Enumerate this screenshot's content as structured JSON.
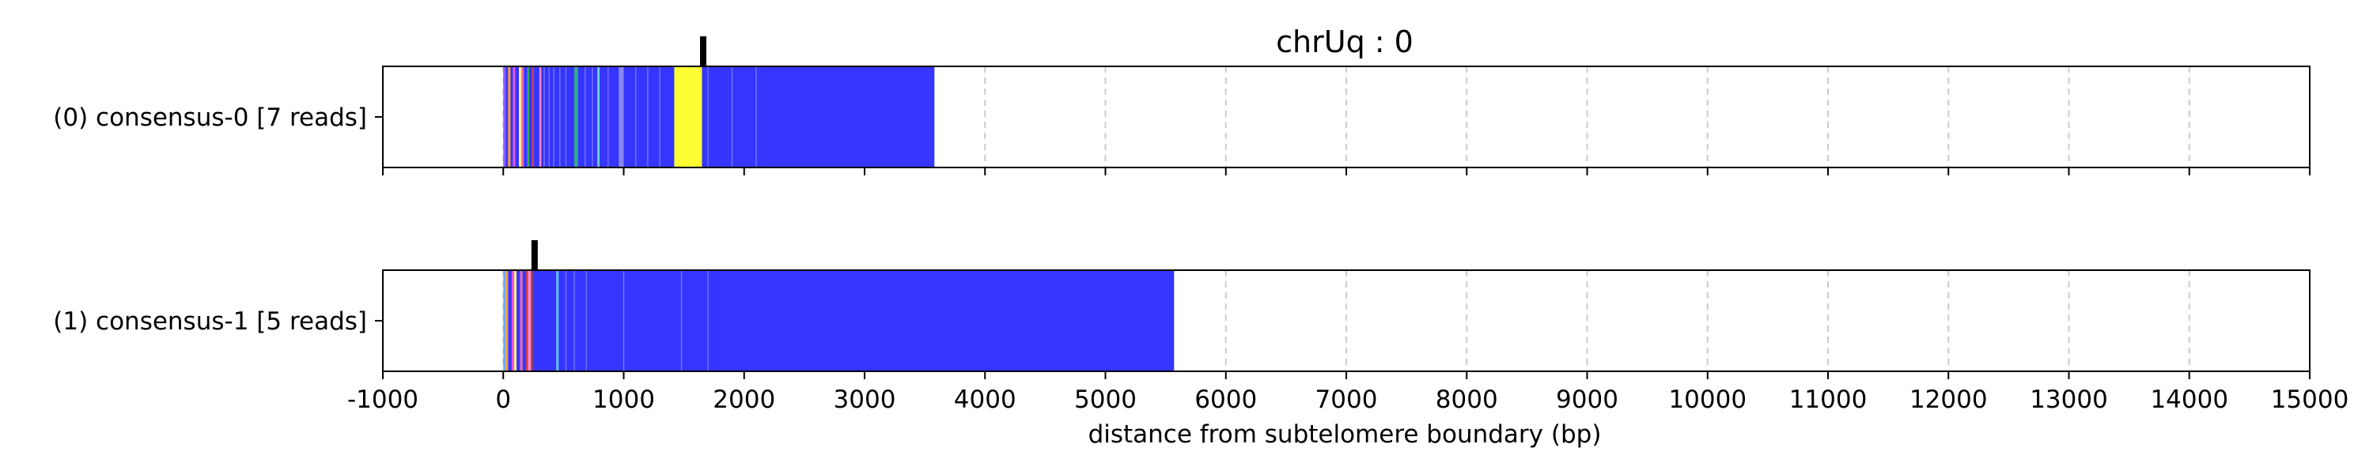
{
  "chart_data": {
    "type": "bar",
    "title": "chrUq : 0",
    "xlabel": "distance from subtelomere boundary (bp)",
    "ylabel": "",
    "xlim": [
      -1000,
      15000
    ],
    "xticks": [
      -1000,
      0,
      1000,
      2000,
      3000,
      4000,
      5000,
      6000,
      7000,
      8000,
      9000,
      10000,
      11000,
      12000,
      13000,
      14000,
      15000
    ],
    "grid": "x dashed",
    "colors": {
      "main": "#3535ff",
      "yellow": "#ffff33",
      "gridline": "#cccccc"
    },
    "series": [
      {
        "name": "(0) consensus-0 [7 reads]",
        "extent": [
          0,
          3580
        ],
        "marker": 1660,
        "segments": [
          {
            "start": 0,
            "end": 20,
            "color": "#8a5cff"
          },
          {
            "start": 20,
            "end": 40,
            "color": "#3535ff"
          },
          {
            "start": 40,
            "end": 60,
            "color": "#ff9933"
          },
          {
            "start": 60,
            "end": 80,
            "color": "#3535ff"
          },
          {
            "start": 80,
            "end": 100,
            "color": "#dd55dd"
          },
          {
            "start": 100,
            "end": 130,
            "color": "#3535ff"
          },
          {
            "start": 130,
            "end": 150,
            "color": "#ffee88"
          },
          {
            "start": 150,
            "end": 170,
            "color": "#ee66aa"
          },
          {
            "start": 170,
            "end": 200,
            "color": "#3535ff"
          },
          {
            "start": 200,
            "end": 215,
            "color": "#33aa55"
          },
          {
            "start": 215,
            "end": 240,
            "color": "#3535ff"
          },
          {
            "start": 240,
            "end": 255,
            "color": "#dd3333"
          },
          {
            "start": 255,
            "end": 300,
            "color": "#3535ff"
          },
          {
            "start": 300,
            "end": 315,
            "color": "#ff88cc"
          },
          {
            "start": 315,
            "end": 590,
            "color": "#3535ff"
          },
          {
            "start": 590,
            "end": 620,
            "color": "#33aa88"
          },
          {
            "start": 620,
            "end": 780,
            "color": "#3535ff"
          },
          {
            "start": 780,
            "end": 800,
            "color": "#66ccdd"
          },
          {
            "start": 800,
            "end": 960,
            "color": "#3535ff"
          },
          {
            "start": 960,
            "end": 1000,
            "color": "#8888ee"
          },
          {
            "start": 1000,
            "end": 1420,
            "color": "#3535ff"
          },
          {
            "start": 1420,
            "end": 1650,
            "color": "#ffff33"
          },
          {
            "start": 1650,
            "end": 3580,
            "color": "#3535ff"
          }
        ]
      },
      {
        "name": "(1) consensus-1 [5 reads]",
        "extent": [
          0,
          5570
        ],
        "marker": 260,
        "segments": [
          {
            "start": 0,
            "end": 20,
            "color": "#66aaff"
          },
          {
            "start": 20,
            "end": 40,
            "color": "#ff9933"
          },
          {
            "start": 40,
            "end": 70,
            "color": "#3535ff"
          },
          {
            "start": 70,
            "end": 90,
            "color": "#dd55dd"
          },
          {
            "start": 90,
            "end": 110,
            "color": "#ffee88"
          },
          {
            "start": 110,
            "end": 140,
            "color": "#3535ff"
          },
          {
            "start": 140,
            "end": 160,
            "color": "#ee66aa"
          },
          {
            "start": 160,
            "end": 190,
            "color": "#3535ff"
          },
          {
            "start": 190,
            "end": 205,
            "color": "#dd3333"
          },
          {
            "start": 205,
            "end": 230,
            "color": "#ff88cc"
          },
          {
            "start": 230,
            "end": 245,
            "color": "#aa3333"
          },
          {
            "start": 245,
            "end": 440,
            "color": "#3535ff"
          },
          {
            "start": 440,
            "end": 460,
            "color": "#55bbee"
          },
          {
            "start": 460,
            "end": 5570,
            "color": "#3535ff"
          }
        ]
      }
    ]
  }
}
